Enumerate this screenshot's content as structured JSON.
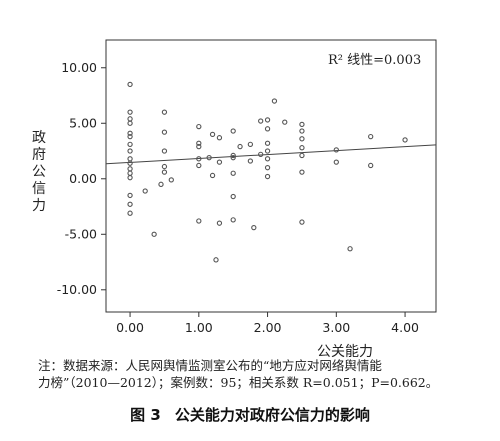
{
  "chart_data": {
    "type": "scatter",
    "xlabel": "公关能力",
    "ylabel": "政府公信力",
    "xlim": [
      -0.35,
      4.45
    ],
    "ylim": [
      -12.0,
      12.5
    ],
    "xticks": [
      "0.00",
      "1.00",
      "2.00",
      "3.00",
      "4.00"
    ],
    "xtick_values": [
      0,
      1,
      2,
      3,
      4
    ],
    "yticks": [
      "10.00",
      "5.00",
      "0.00",
      "-5.00",
      "-10.00"
    ],
    "ytick_values": [
      10,
      5,
      0,
      -5,
      -10
    ],
    "annotation": "R² 线性=0.003",
    "annotation_value": "=0.003",
    "fit_line": {
      "x": [
        -0.35,
        4.45
      ],
      "y": [
        1.35,
        3.05
      ]
    },
    "points": [
      {
        "x": 0,
        "y": 8.5
      },
      {
        "x": 0,
        "y": 6.0
      },
      {
        "x": 0,
        "y": 5.4
      },
      {
        "x": 0,
        "y": 5.0
      },
      {
        "x": 0,
        "y": 4.1
      },
      {
        "x": 0,
        "y": 3.8
      },
      {
        "x": 0,
        "y": 3.1
      },
      {
        "x": 0,
        "y": 2.5
      },
      {
        "x": 0,
        "y": 1.8
      },
      {
        "x": 0,
        "y": 1.4
      },
      {
        "x": 0,
        "y": 0.9
      },
      {
        "x": 0,
        "y": 0.5
      },
      {
        "x": 0,
        "y": 0.1
      },
      {
        "x": 0,
        "y": -1.5
      },
      {
        "x": 0,
        "y": -2.3
      },
      {
        "x": 0,
        "y": -3.1
      },
      {
        "x": 0.22,
        "y": -1.1
      },
      {
        "x": 0.35,
        "y": -5.0
      },
      {
        "x": 0.45,
        "y": -0.5
      },
      {
        "x": 0.5,
        "y": 6.0
      },
      {
        "x": 0.5,
        "y": 4.2
      },
      {
        "x": 0.5,
        "y": 2.5
      },
      {
        "x": 0.5,
        "y": 1.1
      },
      {
        "x": 0.5,
        "y": 0.6
      },
      {
        "x": 0.6,
        "y": -0.1
      },
      {
        "x": 1.0,
        "y": 4.7
      },
      {
        "x": 1.0,
        "y": 3.2
      },
      {
        "x": 1.0,
        "y": 2.9
      },
      {
        "x": 1.0,
        "y": 1.8
      },
      {
        "x": 1.0,
        "y": 1.2
      },
      {
        "x": 1.0,
        "y": -3.8
      },
      {
        "x": 1.15,
        "y": 1.9
      },
      {
        "x": 1.2,
        "y": 4.0
      },
      {
        "x": 1.2,
        "y": 0.3
      },
      {
        "x": 1.25,
        "y": -7.3
      },
      {
        "x": 1.3,
        "y": 3.7
      },
      {
        "x": 1.3,
        "y": 1.5
      },
      {
        "x": 1.3,
        "y": -4.0
      },
      {
        "x": 1.5,
        "y": 4.3
      },
      {
        "x": 1.5,
        "y": 2.1
      },
      {
        "x": 1.5,
        "y": 1.9
      },
      {
        "x": 1.5,
        "y": 0.5
      },
      {
        "x": 1.5,
        "y": -1.6
      },
      {
        "x": 1.5,
        "y": -3.7
      },
      {
        "x": 1.6,
        "y": 2.9
      },
      {
        "x": 1.75,
        "y": 3.1
      },
      {
        "x": 1.75,
        "y": 1.6
      },
      {
        "x": 1.8,
        "y": -4.4
      },
      {
        "x": 1.9,
        "y": 5.2
      },
      {
        "x": 1.9,
        "y": 2.2
      },
      {
        "x": 2.0,
        "y": 5.3
      },
      {
        "x": 2.0,
        "y": 4.5
      },
      {
        "x": 2.0,
        "y": 3.2
      },
      {
        "x": 2.0,
        "y": 2.5
      },
      {
        "x": 2.0,
        "y": 1.8
      },
      {
        "x": 2.0,
        "y": 1.0
      },
      {
        "x": 2.0,
        "y": 0.2
      },
      {
        "x": 2.1,
        "y": 7.0
      },
      {
        "x": 2.25,
        "y": 5.1
      },
      {
        "x": 2.5,
        "y": 4.9
      },
      {
        "x": 2.5,
        "y": 4.3
      },
      {
        "x": 2.5,
        "y": 3.6
      },
      {
        "x": 2.5,
        "y": 2.8
      },
      {
        "x": 2.5,
        "y": 2.1
      },
      {
        "x": 2.5,
        "y": 0.6
      },
      {
        "x": 2.5,
        "y": -3.9
      },
      {
        "x": 3.0,
        "y": 2.6
      },
      {
        "x": 3.0,
        "y": 1.5
      },
      {
        "x": 3.2,
        "y": -6.3
      },
      {
        "x": 3.5,
        "y": 3.8
      },
      {
        "x": 3.5,
        "y": 1.2
      },
      {
        "x": 4.0,
        "y": 3.5
      }
    ]
  },
  "axes": {
    "ylabel_chars": [
      "政",
      "府",
      "公",
      "信",
      "力"
    ]
  },
  "notes": {
    "line1": "注：数据来源：人民网舆情监测室公布的“地方应对网络舆情能",
    "line2": "力榜”（2010—2012）；案例数：95；相关系数 R=0.051；P=0.662。"
  },
  "caption": {
    "label": "图 3",
    "text": "公关能力对政府公信力的影响"
  },
  "colors": {
    "axis": "#333333",
    "point": "#555555",
    "fit_line": "#444444"
  }
}
